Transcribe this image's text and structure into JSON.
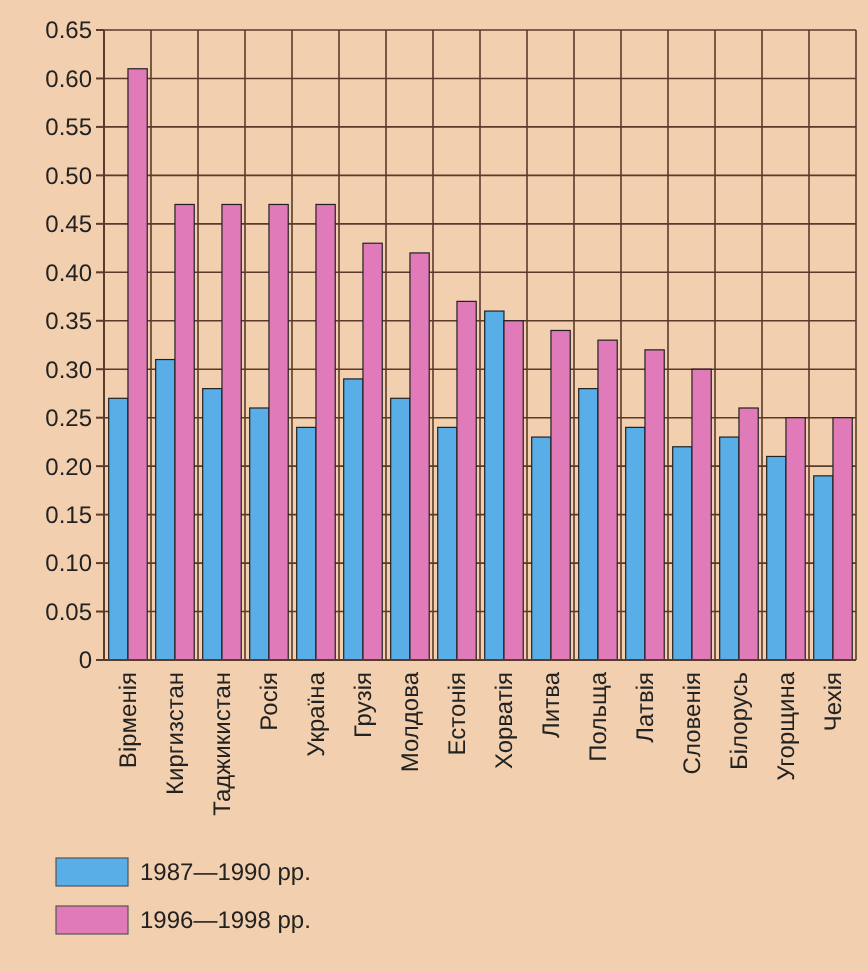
{
  "chart_data": {
    "type": "bar",
    "categories": [
      "Вірменія",
      "Киргизстан",
      "Таджикистан",
      "Росія",
      "Україна",
      "Грузія",
      "Молдова",
      "Естонія",
      "Хорватія",
      "Литва",
      "Польща",
      "Латвія",
      "Словенія",
      "Білорусь",
      "Угорщина",
      "Чехія"
    ],
    "series": [
      {
        "name": "1987—1990 рр.",
        "color": "#5aaee8",
        "values": [
          0.27,
          0.31,
          0.28,
          0.26,
          0.24,
          0.29,
          0.27,
          0.24,
          0.36,
          0.23,
          0.28,
          0.24,
          0.22,
          0.23,
          0.21,
          0.19
        ]
      },
      {
        "name": "1996—1998 рр.",
        "color": "#e07ab8",
        "values": [
          0.61,
          0.47,
          0.47,
          0.47,
          0.47,
          0.43,
          0.42,
          0.37,
          0.35,
          0.34,
          0.33,
          0.32,
          0.3,
          0.26,
          0.25,
          0.25
        ]
      }
    ],
    "ylim": [
      0,
      0.65
    ],
    "yticks": [
      0,
      {
        "value": 0.05,
        "label": "0.05"
      },
      {
        "value": 0.1,
        "label": "0.10"
      },
      {
        "value": 0.15,
        "label": "0.15"
      },
      {
        "value": 0.2,
        "label": "0.20"
      },
      {
        "value": 0.25,
        "label": "0.25"
      },
      {
        "value": 0.3,
        "label": "0.30"
      },
      {
        "value": 0.35,
        "label": "0.35"
      },
      {
        "value": 0.4,
        "label": "0.40"
      },
      {
        "value": 0.45,
        "label": "0.45"
      },
      {
        "value": 0.5,
        "label": "0.50"
      },
      {
        "value": 0.55,
        "label": "0.55"
      },
      {
        "value": 0.6,
        "label": "0.60"
      },
      {
        "value": 0.65,
        "label": "0.65"
      }
    ],
    "grid": true,
    "legend": "bottom left"
  }
}
